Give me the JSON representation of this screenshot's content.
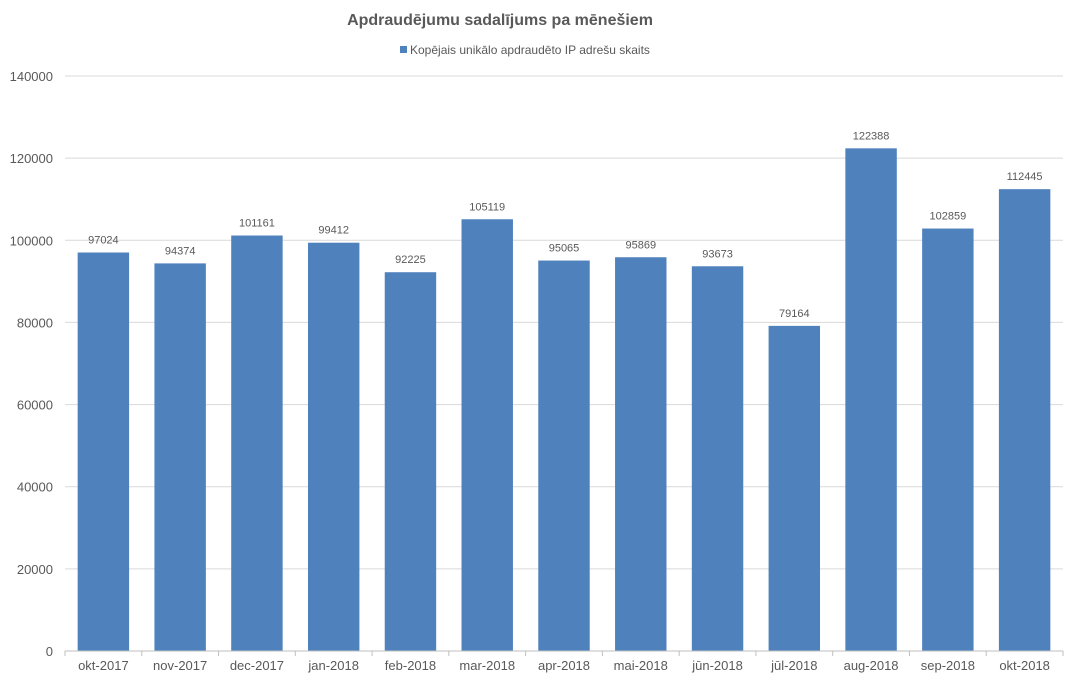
{
  "chart_data": {
    "type": "bar",
    "title": "Apdraudējumu sadalījums pa mēnešiem",
    "xlabel": "",
    "ylabel": "",
    "categories": [
      "okt-2017",
      "nov-2017",
      "dec-2017",
      "jan-2018",
      "feb-2018",
      "mar-2018",
      "apr-2018",
      "mai-2018",
      "jūn-2018",
      "jūl-2018",
      "aug-2018",
      "sep-2018",
      "okt-2018"
    ],
    "series": [
      {
        "name": "Kopējais unikālo apdraudēto IP adrešu skaits",
        "color": "#4f81bd",
        "values": [
          97024,
          94374,
          101161,
          99412,
          92225,
          105119,
          95065,
          95869,
          93673,
          79164,
          122388,
          102859,
          112445
        ]
      }
    ],
    "ylim": [
      0,
      140000
    ],
    "yticks": [
      0,
      20000,
      40000,
      60000,
      80000,
      100000,
      120000,
      140000
    ],
    "grid": true,
    "legend_position": "top",
    "data_labels": true
  }
}
